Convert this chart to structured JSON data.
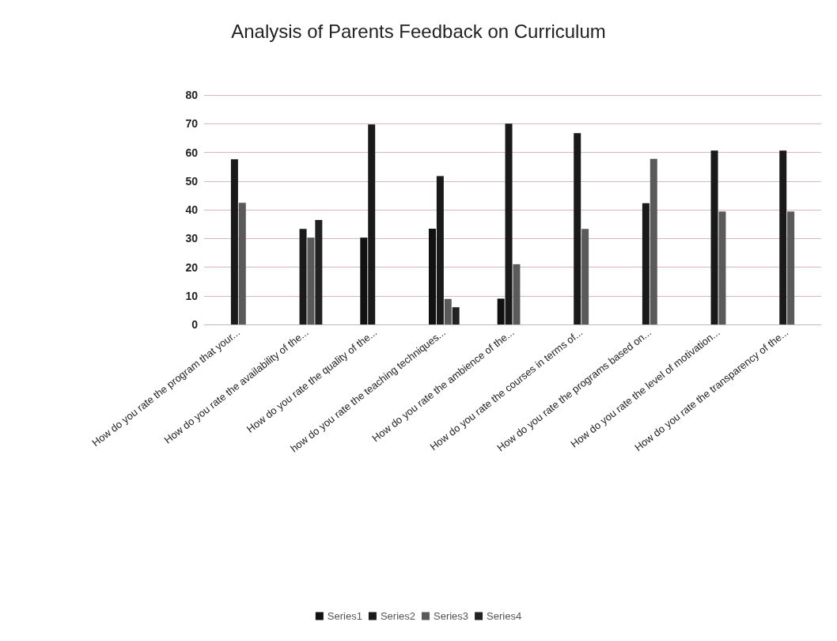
{
  "chart_data": {
    "type": "bar",
    "title": "Analysis of Parents Feedback on Curriculum",
    "categories": [
      "How do you rate the program that your...",
      "How do you rate the availability of the...",
      "How do you rate the quality of the...",
      "how do you rate the teaching techniques...",
      "How do you rate the ambience of the...",
      "How do you rate the courses in terms of...",
      "How do you rate the programs based on...",
      "How do you rate the level of motivation...",
      "How do you rate the transparency of the..."
    ],
    "series": [
      {
        "name": "Series1",
        "color": "#111111",
        "values": [
          0,
          0,
          30.3,
          33.4,
          9,
          0,
          0,
          0,
          0
        ]
      },
      {
        "name": "Series2",
        "color": "#1a1a1a",
        "values": [
          57.6,
          33.3,
          69.7,
          51.7,
          70,
          66.7,
          42.3,
          60.6,
          60.6
        ]
      },
      {
        "name": "Series3",
        "color": "#5a5a5a",
        "values": [
          42.4,
          30.3,
          0,
          8.9,
          21,
          33.3,
          57.7,
          39.4,
          39.4
        ]
      },
      {
        "name": "Series4",
        "color": "#222222",
        "values": [
          0,
          36.4,
          0,
          6,
          0,
          0,
          0,
          0,
          0
        ]
      }
    ],
    "ylim": [
      0,
      80
    ],
    "yticks": [
      0,
      10,
      20,
      30,
      40,
      50,
      60,
      70,
      80
    ],
    "grid": "y",
    "legend": "bottom"
  }
}
